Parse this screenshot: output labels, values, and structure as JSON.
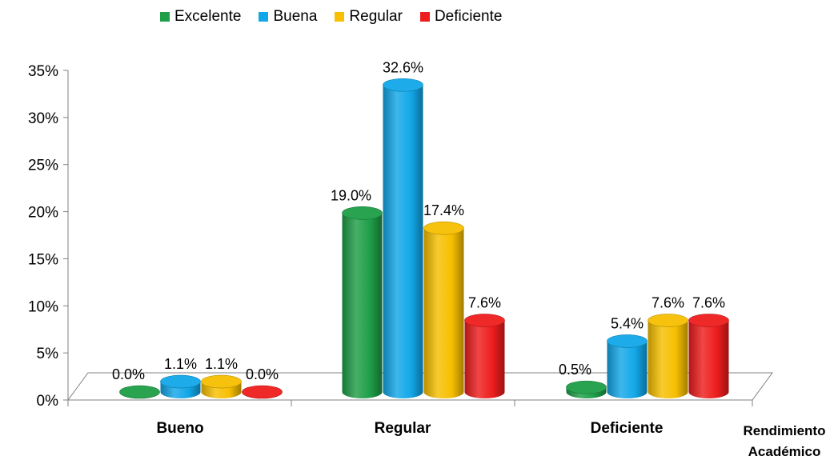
{
  "chart_data": {
    "type": "bar",
    "categories": [
      "Bueno",
      "Regular",
      "Deficiente"
    ],
    "series": [
      {
        "name": "Excelente",
        "color": "#1e9e47",
        "values": [
          0.0,
          19.0,
          0.5
        ],
        "labels": [
          "0.0%",
          "19.0%",
          "0.5%"
        ]
      },
      {
        "name": "Buena",
        "color": "#12a7e8",
        "values": [
          1.1,
          32.6,
          5.4
        ],
        "labels": [
          "1.1%",
          "32.6%",
          "5.4%"
        ]
      },
      {
        "name": "Regular",
        "color": "#f7bf00",
        "values": [
          1.1,
          17.4,
          7.6
        ],
        "labels": [
          "1.1%",
          "17.4%",
          "7.6%"
        ]
      },
      {
        "name": "Deficiente",
        "color": "#ee1d1d",
        "values": [
          0.0,
          7.6,
          7.6
        ],
        "labels": [
          "0.0%",
          "7.6%",
          "7.6%"
        ]
      }
    ],
    "ylim": [
      0,
      35
    ],
    "yticks": [
      "0%",
      "5%",
      "10%",
      "15%",
      "20%",
      "25%",
      "30%",
      "35%"
    ],
    "xlabel": "Rendimiento Académico",
    "xlabel_lines": [
      "Rendimiento",
      "Académico"
    ],
    "legend_position": "top",
    "grid": false,
    "style": "3d-cylinder"
  }
}
